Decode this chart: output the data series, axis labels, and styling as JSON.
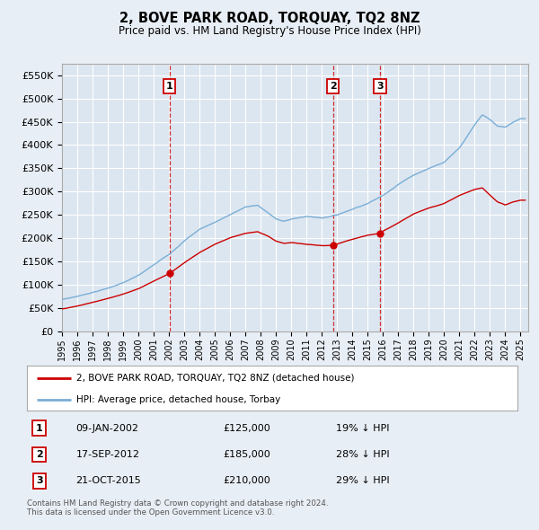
{
  "title": "2, BOVE PARK ROAD, TORQUAY, TQ2 8NZ",
  "subtitle": "Price paid vs. HM Land Registry's House Price Index (HPI)",
  "background_color": "#e8eef5",
  "plot_bg_color": "#dce6f0",
  "grid_color": "#ffffff",
  "line_color_red": "#cc0000",
  "line_color_blue": "#7aaed6",
  "ylim": [
    0,
    575000
  ],
  "yticks": [
    0,
    50000,
    100000,
    150000,
    200000,
    250000,
    300000,
    350000,
    400000,
    450000,
    500000,
    550000
  ],
  "ytick_labels": [
    "£0",
    "£50K",
    "£100K",
    "£150K",
    "£200K",
    "£250K",
    "£300K",
    "£350K",
    "£400K",
    "£450K",
    "£500K",
    "£550K"
  ],
  "transactions": [
    {
      "label": "1",
      "date": "09-JAN-2002",
      "price": 125000,
      "x": 2002.03,
      "pct": "19%",
      "direction": "↓"
    },
    {
      "label": "2",
      "date": "17-SEP-2012",
      "price": 185000,
      "x": 2012.72,
      "pct": "28%",
      "direction": "↓"
    },
    {
      "label": "3",
      "date": "21-OCT-2015",
      "price": 210000,
      "x": 2015.8,
      "pct": "29%",
      "direction": "↓"
    }
  ],
  "legend_red": "2, BOVE PARK ROAD, TORQUAY, TQ2 8NZ (detached house)",
  "legend_blue": "HPI: Average price, detached house, Torbay",
  "footnote1": "Contains HM Land Registry data © Crown copyright and database right 2024.",
  "footnote2": "This data is licensed under the Open Government Licence v3.0.",
  "xmin": 1995,
  "xmax": 2025.5
}
